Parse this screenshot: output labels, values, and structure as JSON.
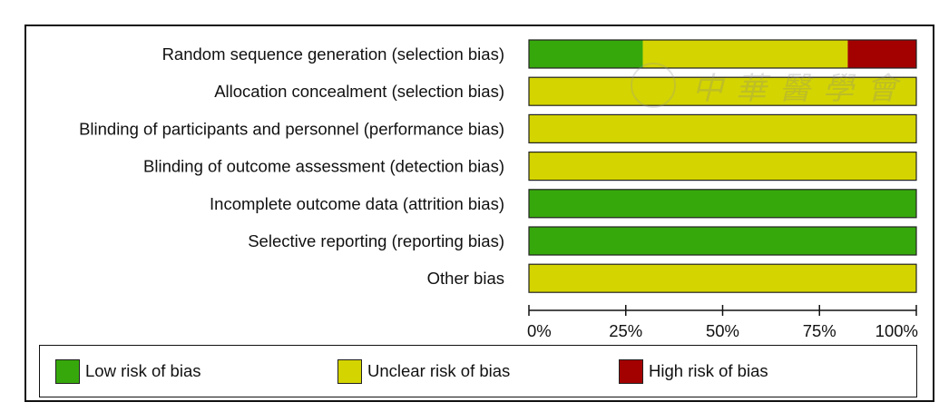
{
  "chart_data": {
    "type": "bar",
    "orientation": "horizontal",
    "stacked": true,
    "categories": [
      "Random sequence generation (selection bias)",
      "Allocation concealment (selection bias)",
      "Blinding of participants and personnel (performance bias)",
      "Blinding of outcome assessment (detection bias)",
      "Incomplete outcome data (attrition bias)",
      "Selective reporting (reporting bias)",
      "Other bias"
    ],
    "series": [
      {
        "name": "Low risk of bias",
        "color": "#36a80c",
        "values": [
          29.4,
          0,
          0,
          0,
          100,
          100,
          0
        ]
      },
      {
        "name": "Unclear risk of bias",
        "color": "#d4d400",
        "values": [
          52.9,
          100,
          100,
          100,
          0,
          0,
          100
        ]
      },
      {
        "name": "High risk of bias",
        "color": "#a30000",
        "values": [
          17.7,
          0,
          0,
          0,
          0,
          0,
          0
        ]
      }
    ],
    "xlim": [
      0,
      100
    ],
    "xticks": [
      "0%",
      "25%",
      "50%",
      "75%",
      "100%"
    ],
    "legend_position": "bottom",
    "grid": false
  },
  "watermark": {
    "text": "中華醫學會"
  }
}
